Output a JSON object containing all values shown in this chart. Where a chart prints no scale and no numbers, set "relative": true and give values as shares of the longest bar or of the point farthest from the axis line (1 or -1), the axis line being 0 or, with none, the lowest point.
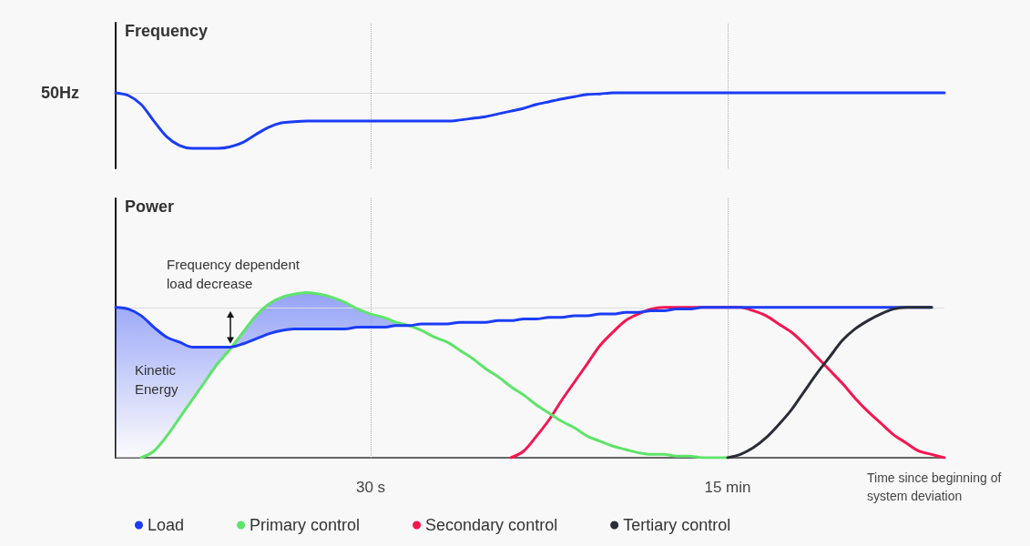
{
  "chart_data": [
    {
      "type": "line",
      "ylabel": "Frequency",
      "relative": true,
      "tick_labels": false,
      "categories": [
        null,
        null,
        null,
        null,
        null,
        null,
        null,
        null,
        null,
        null,
        null,
        null,
        null,
        null,
        null,
        null,
        null,
        null,
        null,
        null,
        "30 s",
        null,
        null,
        null,
        null,
        null,
        null,
        null,
        null,
        null,
        null,
        null,
        null,
        null,
        null,
        null,
        null,
        null,
        null,
        null,
        null,
        null,
        null,
        null,
        null,
        null,
        null,
        null,
        "15 min",
        null,
        null,
        null,
        null,
        null,
        null,
        null,
        null,
        null,
        null,
        null,
        null,
        null,
        null,
        null,
        null,
        null
      ],
      "series": [
        {
          "color": "#1b3cf5",
          "values": [
            1,
            0.95,
            0.79,
            0.49,
            0.21,
            0.05,
            0,
            0,
            0,
            0.03,
            0.11,
            0.25,
            0.38,
            0.46,
            0.48,
            0.49,
            0.49,
            0.49,
            0.49,
            0.49,
            0.49,
            0.49,
            0.49,
            0.49,
            0.49,
            0.49,
            0.49,
            0.51,
            0.54,
            0.57,
            0.62,
            0.67,
            0.72,
            0.79,
            0.84,
            0.89,
            0.93,
            0.97,
            0.98,
            1,
            1,
            1,
            1,
            1,
            1,
            1,
            1,
            1,
            1,
            1,
            1,
            1,
            1,
            1,
            1,
            1,
            1,
            1,
            1,
            1,
            1,
            1,
            1,
            1,
            1,
            1
          ]
        }
      ],
      "ref_lines": [
        {
          "axis": "y",
          "value": 1,
          "label": "50Hz",
          "color": "#dddddd",
          "line_style": "solid"
        },
        {
          "axis": "x",
          "value": "30 s",
          "label": null,
          "color": "#aaaaaa",
          "line_style": "dotted"
        },
        {
          "axis": "x",
          "value": "15 min",
          "label": null,
          "color": "#aaaaaa",
          "line_style": "dotted"
        }
      ]
    },
    {
      "type": "line",
      "ylabel": "Power",
      "xlabel": "Time since beginning of system deviation",
      "relative": true,
      "tick_labels": "x",
      "legend": "bottom",
      "categories": [
        null,
        null,
        null,
        null,
        null,
        null,
        null,
        null,
        null,
        null,
        null,
        null,
        null,
        null,
        null,
        null,
        null,
        null,
        null,
        null,
        "30 s",
        null,
        null,
        null,
        null,
        null,
        null,
        null,
        null,
        null,
        null,
        null,
        null,
        null,
        null,
        null,
        null,
        null,
        null,
        null,
        null,
        null,
        null,
        null,
        null,
        null,
        null,
        null,
        "15 min",
        null,
        null,
        null,
        null,
        null,
        null,
        null,
        null,
        null,
        null,
        null,
        null,
        null,
        null,
        null,
        null,
        null
      ],
      "series": [
        {
          "name": "Load",
          "color": "#1b3cf5",
          "values": [
            0.91,
            0.9,
            0.86,
            0.79,
            0.73,
            0.7,
            0.67,
            0.67,
            0.67,
            0.67,
            0.69,
            0.72,
            0.75,
            0.77,
            0.78,
            0.78,
            0.78,
            0.78,
            0.78,
            0.79,
            0.79,
            0.79,
            0.8,
            0.8,
            0.81,
            0.81,
            0.81,
            0.82,
            0.82,
            0.82,
            0.83,
            0.83,
            0.84,
            0.84,
            0.85,
            0.85,
            0.86,
            0.86,
            0.87,
            0.87,
            0.88,
            0.88,
            0.89,
            0.89,
            0.9,
            0.9,
            0.91,
            0.91,
            0.91,
            0.91,
            0.91,
            0.91,
            0.91,
            0.91,
            0.91,
            0.91,
            0.91,
            0.91,
            0.91,
            0.91,
            0.91,
            0.91,
            0.91,
            0.91,
            0.91,
            null
          ],
          "lower": [
            0,
            0,
            0,
            0.04,
            0.13,
            0.24,
            0.35,
            0.46,
            0.57,
            0.66,
            0.69,
            0.72,
            0.75,
            0.77,
            0.78,
            0.78,
            0.78,
            0.78,
            0.78,
            0.79,
            0.79,
            0.79,
            0.8,
            0.8,
            null,
            null,
            null,
            null,
            null,
            null,
            null,
            null,
            null,
            null,
            null,
            null,
            null,
            null,
            null,
            null,
            null,
            null,
            null,
            null,
            null,
            null,
            null,
            null,
            null,
            null,
            null,
            null,
            null,
            null,
            null,
            null,
            null,
            null,
            null,
            null,
            null,
            null,
            null,
            null,
            null,
            null
          ],
          "upper": [
            0.91,
            0.9,
            0.86,
            0.79,
            0.73,
            0.7,
            0.67,
            0.67,
            0.67,
            0.67,
            0.76,
            0.86,
            0.93,
            0.97,
            0.99,
            1,
            0.99,
            0.97,
            0.94,
            0.9,
            0.87,
            0.85,
            0.82,
            0.8,
            null,
            null,
            null,
            null,
            null,
            null,
            null,
            null,
            null,
            null,
            null,
            null,
            null,
            null,
            null,
            null,
            null,
            null,
            null,
            null,
            null,
            null,
            null,
            null,
            null,
            null,
            null,
            null,
            null,
            null,
            null,
            null,
            null,
            null,
            null,
            null,
            null,
            null,
            null,
            null,
            null,
            null
          ]
        },
        {
          "name": "Primary control",
          "color": "#5ee46a",
          "values": [
            null,
            null,
            0,
            0.04,
            0.13,
            0.24,
            0.35,
            0.46,
            0.57,
            0.66,
            0.76,
            0.86,
            0.93,
            0.97,
            0.99,
            1,
            0.99,
            0.97,
            0.94,
            0.9,
            0.87,
            0.85,
            0.82,
            0.8,
            0.77,
            0.73,
            0.7,
            0.65,
            0.6,
            0.54,
            0.49,
            0.43,
            0.38,
            0.32,
            0.27,
            0.22,
            0.18,
            0.13,
            0.1,
            0.07,
            0.05,
            0.03,
            0.02,
            0.02,
            0.01,
            0.01,
            0,
            0,
            0,
            null,
            null,
            null,
            null,
            null,
            null,
            null,
            null,
            null,
            null,
            null,
            null,
            null,
            null,
            null,
            null,
            null
          ]
        },
        {
          "name": "Secondary control",
          "color": "#f5164f",
          "values": [
            null,
            null,
            null,
            null,
            null,
            null,
            null,
            null,
            null,
            null,
            null,
            null,
            null,
            null,
            null,
            null,
            null,
            null,
            null,
            null,
            null,
            null,
            null,
            null,
            null,
            null,
            null,
            null,
            null,
            null,
            null,
            0,
            0.04,
            0.13,
            0.23,
            0.35,
            0.46,
            0.57,
            0.68,
            0.76,
            0.83,
            0.87,
            0.9,
            0.91,
            0.91,
            0.91,
            0.91,
            0.91,
            0.91,
            0.91,
            0.89,
            0.86,
            0.81,
            0.76,
            0.69,
            0.61,
            0.53,
            0.45,
            0.36,
            0.28,
            0.21,
            0.14,
            0.09,
            0.04,
            0.02,
            0
          ]
        },
        {
          "name": "Tertiary control",
          "color": "#2a2c36",
          "values": [
            null,
            null,
            null,
            null,
            null,
            null,
            null,
            null,
            null,
            null,
            null,
            null,
            null,
            null,
            null,
            null,
            null,
            null,
            null,
            null,
            null,
            null,
            null,
            null,
            null,
            null,
            null,
            null,
            null,
            null,
            null,
            null,
            null,
            null,
            null,
            null,
            null,
            null,
            null,
            null,
            null,
            null,
            null,
            null,
            null,
            null,
            null,
            null,
            0,
            0.02,
            0.06,
            0.12,
            0.2,
            0.29,
            0.4,
            0.51,
            0.61,
            0.71,
            0.78,
            0.83,
            0.87,
            0.9,
            0.91,
            0.91,
            0.91,
            null
          ]
        }
      ],
      "ref_lines": [
        {
          "axis": "y",
          "value": 0.91,
          "label": null,
          "color": "#dddddd",
          "line_style": "solid"
        },
        {
          "axis": "x",
          "value": "30 s",
          "label": null,
          "color": "#aaaaaa",
          "line_style": "dotted"
        },
        {
          "axis": "x",
          "value": "15 min",
          "label": null,
          "color": "#aaaaaa",
          "line_style": "dotted"
        }
      ],
      "annotations": [
        "Frequency dependent load decrease",
        "Kinetic Energy"
      ]
    }
  ]
}
